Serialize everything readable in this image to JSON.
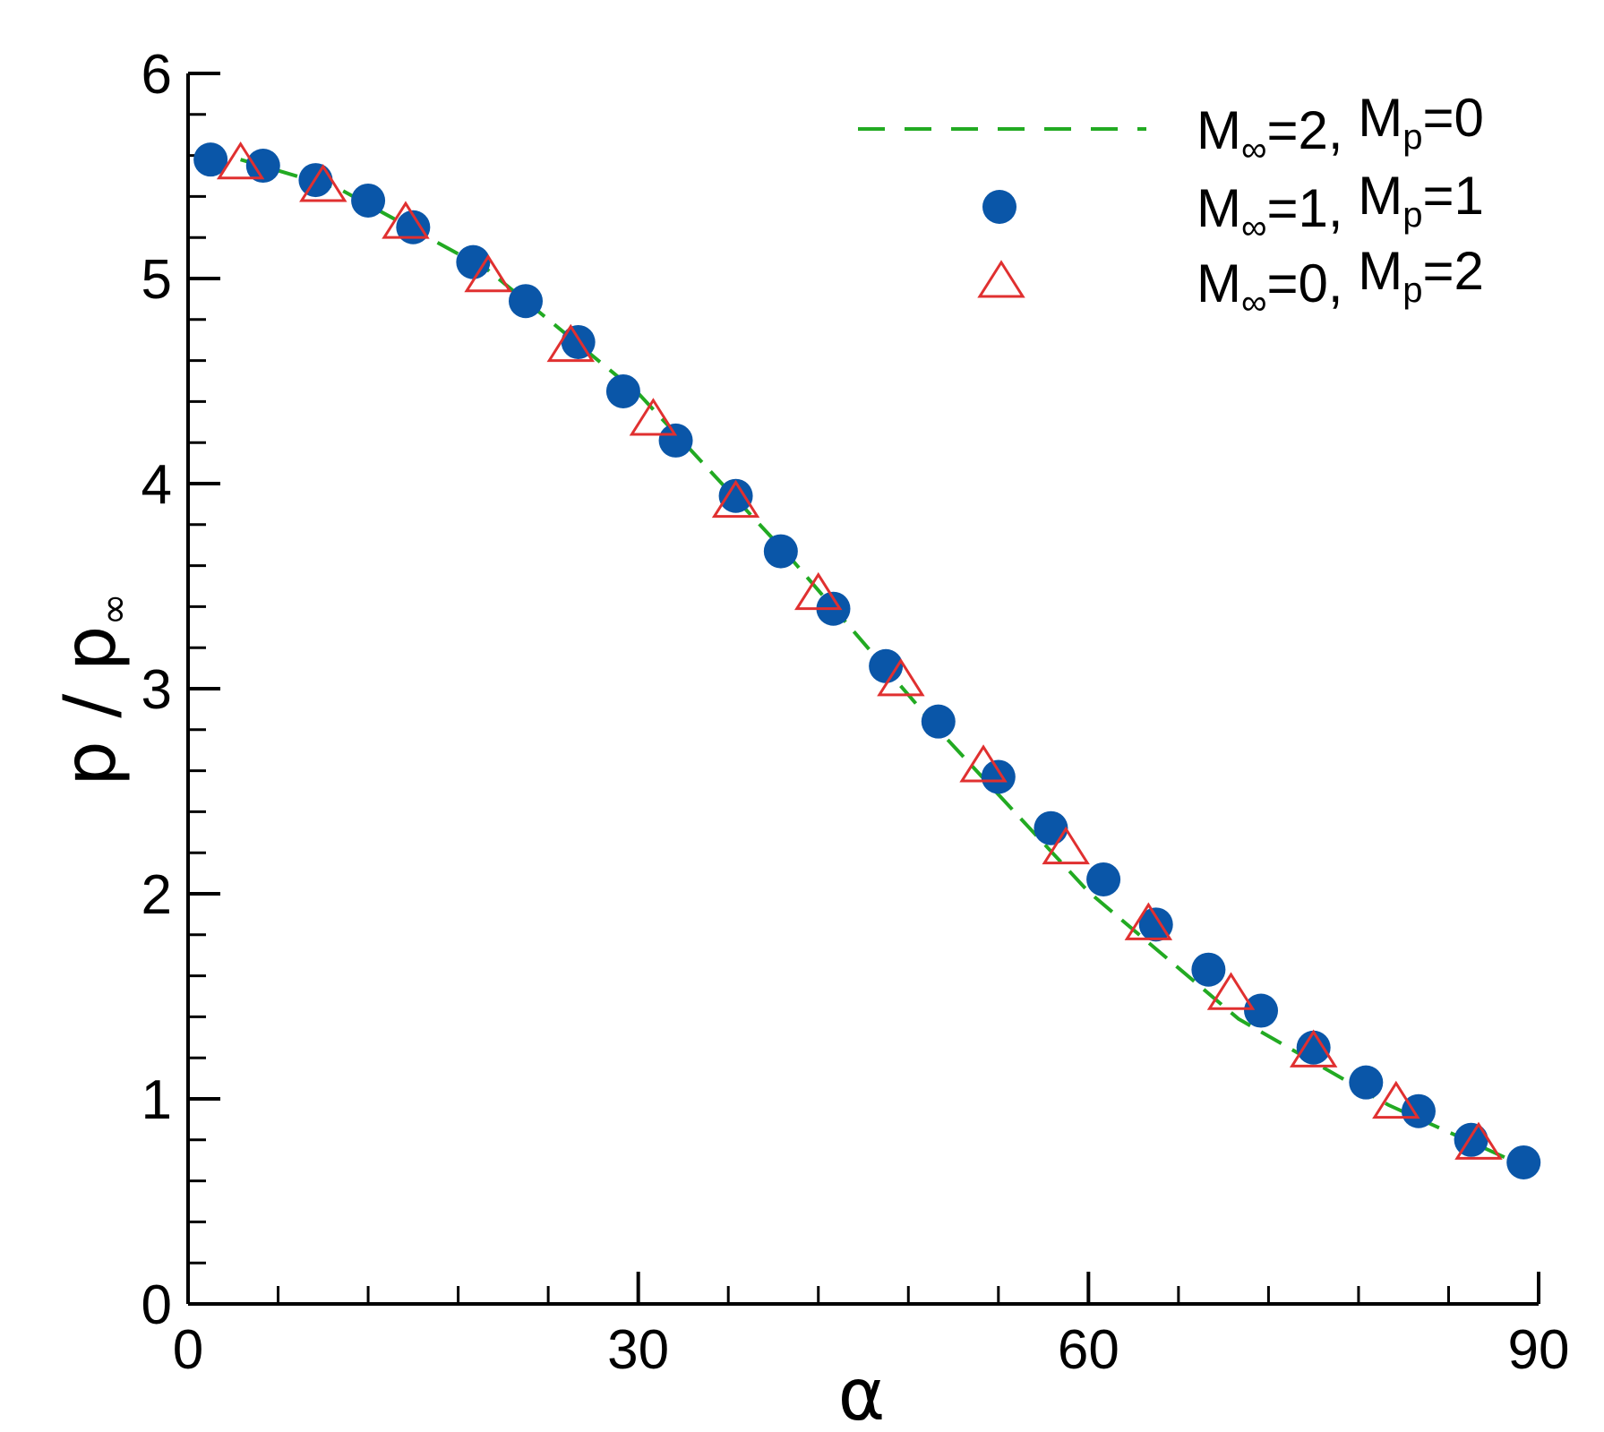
{
  "chart_data": {
    "type": "scatter",
    "xlabel": "α",
    "ylabel_main": "p / p",
    "ylabel_sub": "∞",
    "xlim": [
      0,
      90
    ],
    "ylim": [
      0,
      6
    ],
    "xticks": [
      0,
      30,
      60,
      90
    ],
    "yticks": [
      0,
      1,
      2,
      3,
      4,
      5,
      6
    ],
    "grid": false,
    "legend_position": "top-right",
    "colors": {
      "line": "#22aa22",
      "circle": "#0a56a8",
      "triangle": "#e03030"
    },
    "series": [
      {
        "name": "M∞=2, Mp=0",
        "legend": {
          "m1": "M",
          "s1": "∞",
          "r1": "=2, ",
          "m2": "M",
          "s2": "p",
          "r2": "=0"
        },
        "style": "dashed-line",
        "x": [
          3.5,
          10,
          20,
          30,
          40,
          50,
          60,
          70,
          80,
          88.5
        ],
        "y": [
          5.58,
          5.44,
          5.04,
          4.44,
          3.65,
          2.8,
          2.01,
          1.39,
          0.97,
          0.69
        ]
      },
      {
        "name": "M∞=1, Mp=1",
        "legend": {
          "m1": "M",
          "s1": "∞",
          "r1": "=1, ",
          "m2": "M",
          "s2": "p",
          "r2": "=1"
        },
        "style": "filled-circle",
        "x": [
          1.5,
          5,
          8.5,
          12,
          15,
          19,
          22.5,
          26,
          29,
          32.5,
          36.5,
          39.5,
          43,
          46.5,
          50,
          54,
          57.5,
          61,
          64.5,
          68,
          71.5,
          75,
          78.5,
          82,
          85.5,
          89
        ],
        "y": [
          5.58,
          5.55,
          5.48,
          5.38,
          5.25,
          5.08,
          4.89,
          4.69,
          4.45,
          4.21,
          3.94,
          3.67,
          3.39,
          3.11,
          2.84,
          2.57,
          2.32,
          2.07,
          1.85,
          1.63,
          1.43,
          1.25,
          1.08,
          0.94,
          0.8,
          0.69
        ]
      },
      {
        "name": "M∞=0, Mp=2",
        "legend": {
          "m1": "M",
          "s1": "∞",
          "r1": "=0, ",
          "m2": "M",
          "s2": "p",
          "r2": "=2"
        },
        "style": "open-triangle",
        "x": [
          3.5,
          9,
          14.5,
          20,
          25.5,
          31,
          36.5,
          42,
          47.5,
          53,
          58.5,
          64,
          69.5,
          75,
          80.5,
          86
        ],
        "y": [
          5.56,
          5.45,
          5.27,
          5.01,
          4.67,
          4.31,
          3.91,
          3.46,
          3.04,
          2.62,
          2.22,
          1.85,
          1.51,
          1.23,
          0.98,
          0.78
        ]
      }
    ]
  }
}
